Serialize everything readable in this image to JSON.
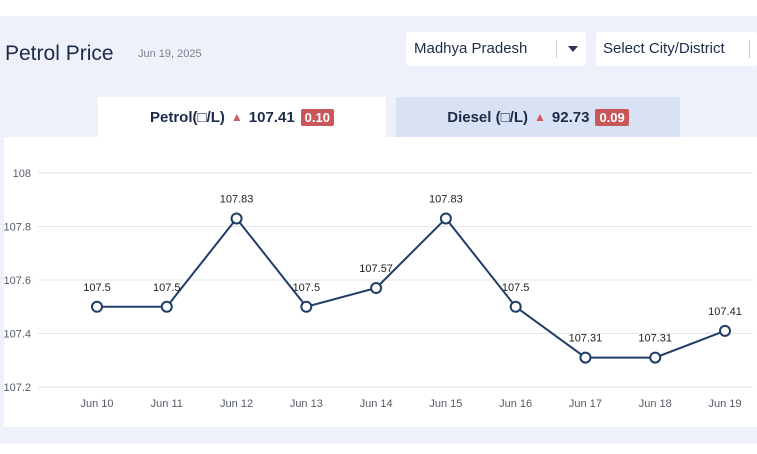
{
  "header": {
    "title": "Petrol Price",
    "date": "Jun 19, 2025",
    "state_select": "Madhya Pradesh",
    "city_select": "Select City/District"
  },
  "tabs": [
    {
      "label": "Petrol(□/L)",
      "price": "107.41",
      "change": "0.10"
    },
    {
      "label": "Diesel (□/L)",
      "price": "92.73",
      "change": "0.09"
    }
  ],
  "colors": {
    "line": "#1f3d66",
    "badge": "#c9575a",
    "up_arrow": "#d35b5b",
    "panel_bg": "#eef1fa",
    "active_tab": "#ffffff",
    "inactive_tab": "#d9e2f5"
  },
  "chart_data": {
    "type": "line",
    "categories": [
      "Jun 10",
      "Jun 11",
      "Jun 12",
      "Jun 13",
      "Jun 14",
      "Jun 15",
      "Jun 16",
      "Jun 17",
      "Jun 18",
      "Jun 19"
    ],
    "values": [
      107.5,
      107.5,
      107.83,
      107.5,
      107.57,
      107.83,
      107.5,
      107.31,
      107.31,
      107.41
    ],
    "data_labels": [
      "107.5",
      "107.5",
      "107.83",
      "107.5",
      "107.57",
      "107.83",
      "107.5",
      "107.31",
      "107.31",
      "107.41"
    ],
    "y_ticks": [
      "107.2",
      "107.4",
      "107.6",
      "107.8",
      "108"
    ],
    "y_tick_values": [
      107.2,
      107.4,
      107.6,
      107.8,
      108
    ],
    "ylim": [
      107.2,
      108
    ],
    "grid": true
  }
}
